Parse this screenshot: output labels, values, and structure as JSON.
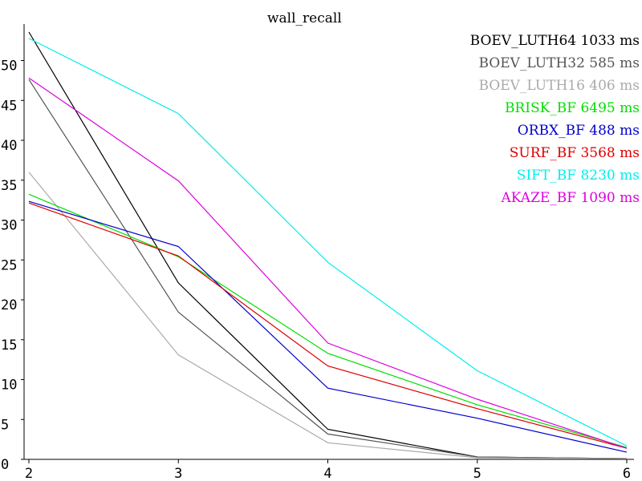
{
  "chart_data": {
    "type": "line",
    "title": "",
    "xlabel": "",
    "ylabel": "",
    "legend_title": "wall_recall",
    "legend_position": "top-right",
    "grid": false,
    "xlim": [
      2,
      6
    ],
    "ylim": [
      0,
      54
    ],
    "x": [
      2,
      3,
      4,
      5,
      6
    ],
    "x_ticks": [
      "2",
      "3",
      "4",
      "5",
      "6"
    ],
    "y_ticks": [
      "0",
      "5",
      "10",
      "15",
      "20",
      "25",
      "30",
      "35",
      "40",
      "45",
      "50"
    ],
    "series": [
      {
        "name": "BOEV_LUTH64",
        "time": "1033",
        "unit": "ms",
        "color": "#000000",
        "values": [
          54.0,
          22.3,
          3.8,
          0.3,
          0.1
        ]
      },
      {
        "name": "BOEV_LUTH32",
        "time": "585",
        "unit": "ms",
        "color": "#555555",
        "values": [
          48.0,
          18.6,
          3.2,
          0.3,
          0.1
        ]
      },
      {
        "name": "BOEV_LUTH16",
        "time": "406",
        "unit": "ms",
        "color": "#aaaaaa",
        "values": [
          36.3,
          13.2,
          2.1,
          0.2,
          0.1
        ]
      },
      {
        "name": "BRISK_BF",
        "time": "6495",
        "unit": "ms",
        "color": "#00dd00",
        "values": [
          33.5,
          25.6,
          13.4,
          6.9,
          1.5
        ]
      },
      {
        "name": "ORBX_BF",
        "time": "488",
        "unit": "ms",
        "color": "#0000cc",
        "values": [
          32.6,
          26.9,
          9.0,
          5.2,
          0.9
        ]
      },
      {
        "name": "SURF_BF",
        "time": "3568",
        "unit": "ms",
        "color": "#dd0000",
        "values": [
          32.4,
          25.7,
          11.8,
          6.4,
          1.4
        ]
      },
      {
        "name": "SIFT_BF",
        "time": "8230",
        "unit": "ms",
        "color": "#00eeee",
        "values": [
          53.2,
          43.7,
          24.9,
          11.2,
          1.7
        ]
      },
      {
        "name": "AKAZE_BF",
        "time": "1090",
        "unit": "ms",
        "color": "#dd00dd",
        "values": [
          48.2,
          35.2,
          14.7,
          7.6,
          1.4
        ]
      }
    ]
  }
}
